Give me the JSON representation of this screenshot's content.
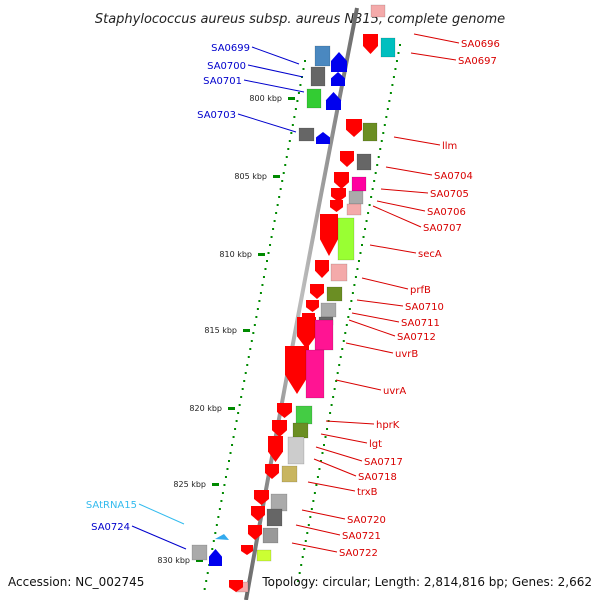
{
  "title": "Staphylococcus aureus subsp. aureus N315, complete genome",
  "accession": "Accession: NC_002745",
  "summary": "Topology: circular; Length: 2,814,816 bp; Genes: 2,662",
  "colors": {
    "backbone": "#8c8c8c",
    "tick": "#008a00",
    "forward_label": "#0000cc",
    "trna_label": "#33bbee",
    "reverse_label": "#d80000",
    "cds_arrow": "#ff0000",
    "gene_arrow_blue": "#0000ee",
    "trna_arrow": "#33aaee"
  },
  "ruler": [
    {
      "label": "800 kbp"
    },
    {
      "label": "805 kbp"
    },
    {
      "label": "810 kbp"
    },
    {
      "label": "815 kbp"
    },
    {
      "label": "820 kbp"
    },
    {
      "label": "825 kbp"
    },
    {
      "label": "830 kbp"
    }
  ],
  "forward_genes": [
    {
      "name": "SA0699",
      "color": "#0000cc"
    },
    {
      "name": "SA0700",
      "color": "#0000cc"
    },
    {
      "name": "SA0701",
      "color": "#0000cc"
    },
    {
      "name": "SA0703",
      "color": "#0000cc"
    },
    {
      "name": "SAtRNA15",
      "color": "#33bbee"
    },
    {
      "name": "SA0724",
      "color": "#0000cc"
    }
  ],
  "reverse_genes": [
    {
      "name": "SA0696"
    },
    {
      "name": "SA0697"
    },
    {
      "name": "llm"
    },
    {
      "name": "SA0704"
    },
    {
      "name": "SA0705"
    },
    {
      "name": "SA0706"
    },
    {
      "name": "SA0707"
    },
    {
      "name": "secA"
    },
    {
      "name": "prfB"
    },
    {
      "name": "SA0710"
    },
    {
      "name": "SA0711"
    },
    {
      "name": "SA0712"
    },
    {
      "name": "uvrB"
    },
    {
      "name": "uvrA"
    },
    {
      "name": "hprK"
    },
    {
      "name": "lgt"
    },
    {
      "name": "SA0717"
    },
    {
      "name": "SA0718"
    },
    {
      "name": "trxB"
    },
    {
      "name": "SA0720"
    },
    {
      "name": "SA0721"
    },
    {
      "name": "SA0722"
    }
  ]
}
